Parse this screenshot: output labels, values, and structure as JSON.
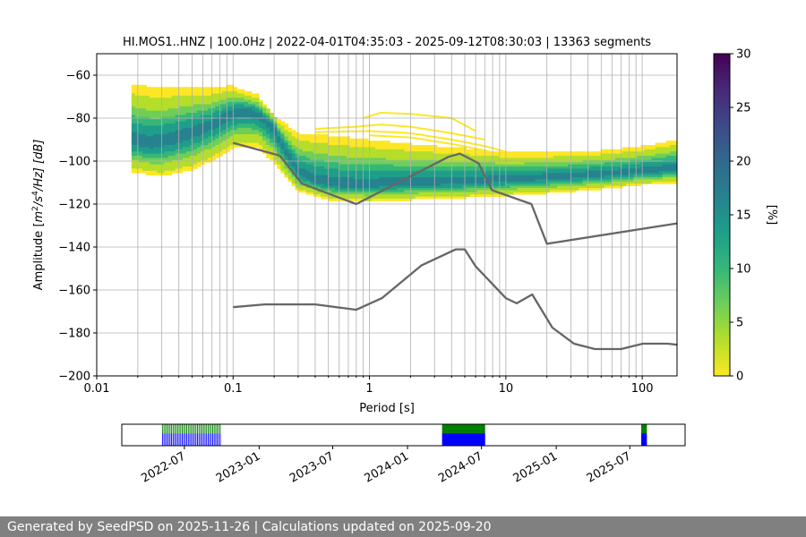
{
  "chart_data": [
    {
      "type": "heatmap",
      "title": "HI.MOS1..HNZ | 100.0Hz | 2022-04-01T04:35:03 - 2025-09-12T08:30:03 | 13363 segments",
      "xlabel": "Period [s]",
      "ylabel": {
        "prefix": "Amplitude [",
        "m": "m",
        "e1": "2",
        "s": "/s",
        "e2": "4",
        "suffix": "/Hz] [dB]"
      },
      "xscale": "log",
      "xlim": [
        0.01,
        180
      ],
      "ylim": [
        -200,
        -50
      ],
      "x_ticks": [
        0.01,
        0.1,
        1,
        10,
        100
      ],
      "x_tick_labels": [
        "0.01",
        "0.1",
        "1",
        "10",
        "100"
      ],
      "y_ticks": [
        -200,
        -180,
        -160,
        -140,
        -120,
        -100,
        -80,
        -60
      ],
      "y_tick_labels": [
        "−200",
        "−180",
        "−160",
        "−140",
        "−120",
        "−100",
        "−80",
        "−60"
      ],
      "grid": true,
      "colorbar": {
        "label": "[%]",
        "range": [
          0,
          30
        ],
        "ticks": [
          0,
          5,
          10,
          15,
          20,
          25,
          30
        ],
        "tick_labels": [
          "0",
          "5",
          "10",
          "15",
          "20",
          "25",
          "30"
        ],
        "colormap": [
          "#fde725",
          "#b5de2b",
          "#6ece58",
          "#35b779",
          "#1f9e89",
          "#26828e",
          "#31688e",
          "#3e4989",
          "#482878",
          "#440154"
        ]
      },
      "series": [
        {
          "name": "Peterson NHNM",
          "color": "#666666",
          "x": [
            0.1,
            0.22,
            0.32,
            0.8,
            3.8,
            4.6,
            6.3,
            7.9,
            15.4,
            20,
            180
          ],
          "y": [
            -91.5,
            -97.4,
            -110.5,
            -120,
            -98,
            -96.5,
            -101,
            -113.5,
            -120,
            -138.5,
            -129
          ]
        },
        {
          "name": "Peterson NLNM",
          "color": "#666666",
          "x": [
            0.1,
            0.17,
            0.4,
            0.8,
            1.24,
            2.4,
            4.3,
            5,
            6,
            10,
            12,
            15.6,
            21.9,
            31.6,
            45,
            70,
            101,
            154,
            180
          ],
          "y": [
            -168,
            -166.7,
            -166.7,
            -169.2,
            -163.7,
            -148.6,
            -141.1,
            -141.1,
            -149,
            -163.8,
            -166.2,
            -162.1,
            -177.5,
            -185,
            -187.5,
            -187.5,
            -185,
            -185,
            -185.5
          ]
        }
      ],
      "psd_density": {
        "period_range": [
          0.018,
          180
        ],
        "mode_curve": {
          "x": [
            0.018,
            0.025,
            0.035,
            0.05,
            0.07,
            0.09,
            0.11,
            0.13,
            0.16,
            0.2,
            0.25,
            0.3,
            0.4,
            0.5,
            0.6,
            0.8,
            1,
            1.5,
            2,
            3,
            5,
            7,
            10,
            15,
            20,
            30,
            50,
            70,
            100,
            130,
            180
          ],
          "y": [
            -90,
            -92,
            -90,
            -87,
            -83,
            -79,
            -77,
            -77,
            -79,
            -85,
            -97,
            -105,
            -109,
            -110,
            -111,
            -111,
            -111,
            -110.5,
            -110,
            -110,
            -109.5,
            -109,
            -108.5,
            -108,
            -107.5,
            -107,
            -106,
            -105.5,
            -104.5,
            -104,
            -103
          ]
        },
        "band_low": {
          "x": [
            0.018,
            0.03,
            0.05,
            0.08,
            0.1,
            0.15,
            0.2,
            0.3,
            0.5,
            1,
            2,
            5,
            10,
            20,
            50,
            100,
            180
          ],
          "y": [
            -105,
            -107,
            -104,
            -98,
            -94,
            -93,
            -101,
            -114,
            -118,
            -119,
            -118,
            -117,
            -116,
            -115,
            -113,
            -111,
            -110
          ]
        },
        "band_high": {
          "x": [
            0.018,
            0.03,
            0.05,
            0.07,
            0.09,
            0.1,
            0.12,
            0.15,
            0.2,
            0.3,
            0.5,
            1,
            2,
            5,
            10,
            20,
            50,
            100,
            180
          ],
          "y": [
            -64,
            -66,
            -65,
            -66,
            -65,
            -65,
            -67,
            -69,
            -79,
            -87,
            -88,
            -90,
            -92,
            -94,
            -96,
            -96,
            -95,
            -93,
            -90
          ]
        },
        "outlier_traces": [
          {
            "x": [
              0.9,
              1.2,
              2,
              4,
              6
            ],
            "y": [
              -80,
              -77.5,
              -78,
              -80,
              -86
            ]
          },
          {
            "x": [
              0.4,
              0.8,
              1.2,
              2,
              4,
              7
            ],
            "y": [
              -85,
              -84,
              -83,
              -84,
              -87,
              -90
            ]
          },
          {
            "x": [
              0.4,
              1,
              2,
              4,
              7,
              12
            ],
            "y": [
              -86.5,
              -86,
              -87,
              -90,
              -93,
              -97
            ]
          },
          {
            "x": [
              1,
              2,
              4,
              7,
              10
            ],
            "y": [
              -88,
              -89,
              -92,
              -95,
              -98
            ]
          }
        ]
      }
    },
    {
      "type": "timeline",
      "date_range": [
        "2022-04-01",
        "2025-09-12"
      ],
      "x_tick_labels": [
        "2022-07",
        "2023-01",
        "2023-07",
        "2024-01",
        "2024-07",
        "2025-01",
        "2025-07"
      ],
      "x_tick_dates": [
        "2022-07-01",
        "2023-01-01",
        "2023-07-01",
        "2024-01-01",
        "2024-07-01",
        "2025-01-01",
        "2025-07-01"
      ],
      "colors": {
        "available": "#008000",
        "used": "#0000ff"
      },
      "coverage": [
        {
          "start": "2022-05-08",
          "end": "2022-09-30",
          "style": "sparse"
        },
        {
          "start": "2024-03-26",
          "end": "2024-07-10",
          "style": "solid"
        },
        {
          "start": "2025-07-29",
          "end": "2025-08-12",
          "style": "solid"
        }
      ]
    }
  ],
  "footer": {
    "text": "Generated by SeedPSD on 2025-11-26 | Calculations updated on 2025-09-20"
  }
}
